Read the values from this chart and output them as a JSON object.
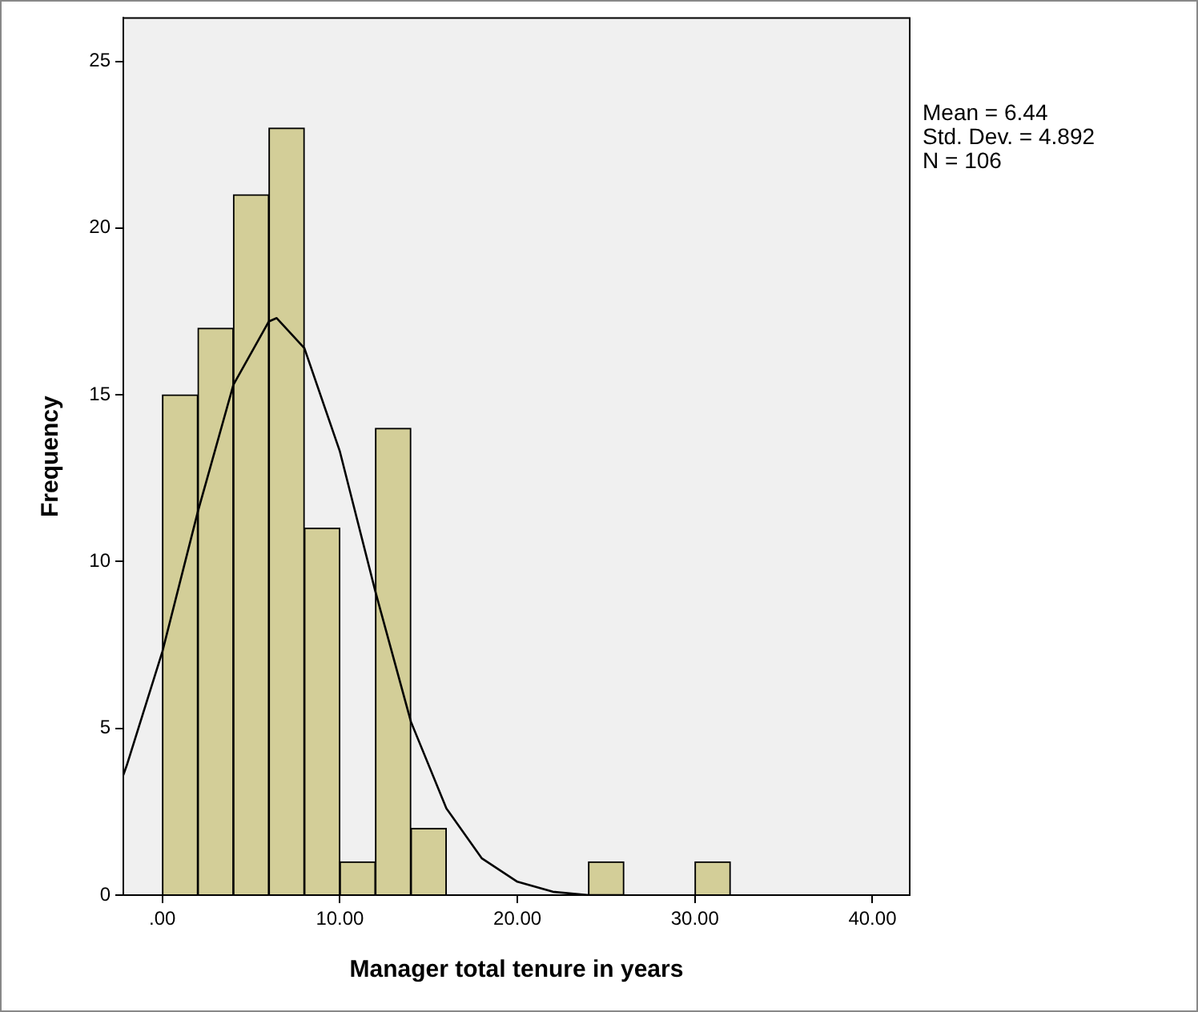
{
  "chart_data": {
    "type": "histogram",
    "xlabel": "Manager total tenure in years",
    "ylabel": "Frequency",
    "bins": [
      0,
      2,
      4,
      6,
      8,
      10,
      12,
      14,
      16,
      18,
      20,
      22,
      24,
      26,
      28,
      30,
      32
    ],
    "values": [
      15,
      17,
      21,
      23,
      11,
      1,
      14,
      2,
      0,
      0,
      0,
      0,
      1,
      0,
      0,
      1
    ],
    "color": "#d3ce98",
    "series": [
      {
        "type": "line",
        "color": "#000000",
        "marker": "none",
        "x": [
          -2.2,
          -2,
          0,
          2,
          4,
          6,
          6.44,
          8,
          10,
          12,
          14,
          16,
          18,
          20,
          22,
          24,
          26
        ],
        "values": [
          3.6,
          3.9,
          7.3,
          11.5,
          15.3,
          17.2,
          17.3,
          16.4,
          13.3,
          9.1,
          5.2,
          2.6,
          1.1,
          0.4,
          0.1,
          0,
          0
        ]
      }
    ],
    "xlim": [
      -2.2,
      42.1
    ],
    "xticks": [
      {
        "value": 0,
        "label": ".00"
      },
      {
        "value": 10,
        "label": "10.00"
      },
      {
        "value": 20,
        "label": "20.00"
      },
      {
        "value": 30,
        "label": "30.00"
      },
      {
        "value": 40,
        "label": "40.00"
      }
    ],
    "ylim": [
      0,
      26.3
    ],
    "yticks": [
      0,
      5,
      10,
      15,
      20,
      25
    ],
    "grid": false,
    "legend": false,
    "annotations": [
      "Mean = 6.44",
      "Std. Dev. = 4.892",
      "N = 106"
    ]
  }
}
